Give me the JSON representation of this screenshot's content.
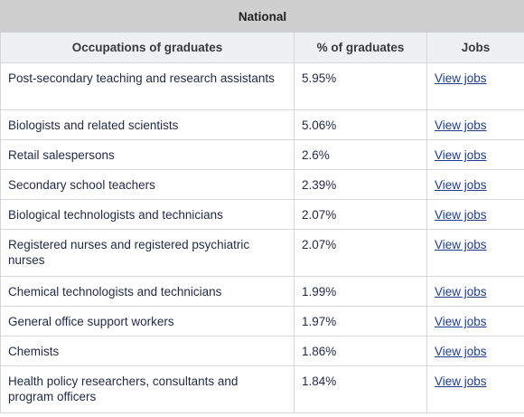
{
  "table": {
    "title": "National",
    "headers": [
      "Occupations of graduates",
      "% of graduates",
      "Jobs"
    ],
    "rows": [
      {
        "occupation": "Post-secondary teaching and research assistants",
        "percent": "5.95%",
        "link": "View jobs"
      },
      {
        "occupation": "Biologists and related scientists",
        "percent": "5.06%",
        "link": "View jobs"
      },
      {
        "occupation": "Retail salespersons",
        "percent": "2.6%",
        "link": "View jobs"
      },
      {
        "occupation": "Secondary school teachers",
        "percent": "2.39%",
        "link": "View jobs"
      },
      {
        "occupation": "Biological technologists and technicians",
        "percent": "2.07%",
        "link": "View jobs"
      },
      {
        "occupation": "Registered nurses and registered psychiatric nurses",
        "percent": "2.07%",
        "link": "View jobs"
      },
      {
        "occupation": "Chemical technologists and technicians",
        "percent": "1.99%",
        "link": "View jobs"
      },
      {
        "occupation": "General office support workers",
        "percent": "1.97%",
        "link": "View jobs"
      },
      {
        "occupation": "Chemists",
        "percent": "1.86%",
        "link": "View jobs"
      },
      {
        "occupation": "Health policy researchers, consultants and program officers",
        "percent": "1.84%",
        "link": "View jobs"
      }
    ]
  },
  "colors": {
    "title_bg": "#cfcfcf",
    "header_bg": "#eef0f2",
    "border": "#d6d6d6",
    "link": "#1f3d8a"
  }
}
